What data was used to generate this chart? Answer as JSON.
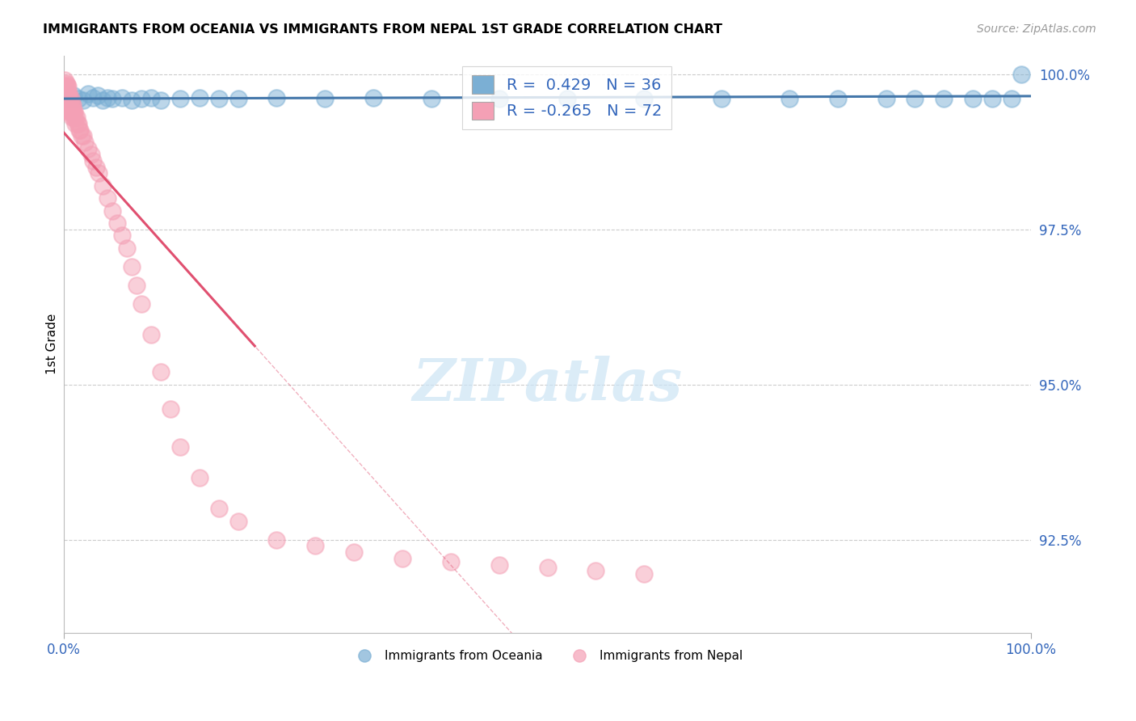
{
  "title": "IMMIGRANTS FROM OCEANIA VS IMMIGRANTS FROM NEPAL 1ST GRADE CORRELATION CHART",
  "source": "Source: ZipAtlas.com",
  "ylabel": "1st Grade",
  "legend_label1": "Immigrants from Oceania",
  "legend_label2": "Immigrants from Nepal",
  "r1": 0.429,
  "n1": 36,
  "r2": -0.265,
  "n2": 72,
  "blue_color": "#7BAFD4",
  "pink_color": "#F4A0B5",
  "blue_line_color": "#4477AA",
  "pink_line_color": "#E05070",
  "oceania_x": [
    0.005,
    0.01,
    0.015,
    0.02,
    0.025,
    0.03,
    0.035,
    0.04,
    0.045,
    0.05,
    0.06,
    0.07,
    0.08,
    0.09,
    0.1,
    0.12,
    0.14,
    0.16,
    0.18,
    0.22,
    0.27,
    0.32,
    0.38,
    0.45,
    0.52,
    0.6,
    0.68,
    0.75,
    0.8,
    0.85,
    0.88,
    0.91,
    0.94,
    0.96,
    0.98,
    0.99
  ],
  "oceania_y": [
    0.996,
    0.9965,
    0.996,
    0.9958,
    0.9968,
    0.9962,
    0.9965,
    0.9958,
    0.9962,
    0.996,
    0.9962,
    0.9958,
    0.996,
    0.9962,
    0.9958,
    0.996,
    0.9962,
    0.996,
    0.996,
    0.9962,
    0.996,
    0.9962,
    0.996,
    0.996,
    0.996,
    0.996,
    0.996,
    0.996,
    0.996,
    0.996,
    0.996,
    0.996,
    0.996,
    0.996,
    0.996,
    1.0
  ],
  "nepal_x": [
    0.001,
    0.001,
    0.001,
    0.002,
    0.002,
    0.002,
    0.002,
    0.003,
    0.003,
    0.003,
    0.003,
    0.004,
    0.004,
    0.004,
    0.005,
    0.005,
    0.005,
    0.005,
    0.006,
    0.006,
    0.006,
    0.007,
    0.007,
    0.007,
    0.008,
    0.008,
    0.008,
    0.009,
    0.009,
    0.01,
    0.01,
    0.011,
    0.012,
    0.012,
    0.013,
    0.014,
    0.015,
    0.016,
    0.017,
    0.018,
    0.02,
    0.022,
    0.025,
    0.028,
    0.03,
    0.033,
    0.036,
    0.04,
    0.045,
    0.05,
    0.055,
    0.06,
    0.065,
    0.07,
    0.075,
    0.08,
    0.09,
    0.1,
    0.11,
    0.12,
    0.14,
    0.16,
    0.18,
    0.22,
    0.26,
    0.3,
    0.35,
    0.4,
    0.45,
    0.5,
    0.55,
    0.6
  ],
  "nepal_y": [
    0.999,
    0.998,
    0.997,
    0.9985,
    0.998,
    0.997,
    0.996,
    0.9982,
    0.997,
    0.996,
    0.995,
    0.998,
    0.997,
    0.996,
    0.997,
    0.996,
    0.995,
    0.994,
    0.996,
    0.995,
    0.994,
    0.996,
    0.995,
    0.994,
    0.995,
    0.994,
    0.993,
    0.995,
    0.994,
    0.994,
    0.993,
    0.994,
    0.993,
    0.992,
    0.993,
    0.992,
    0.992,
    0.991,
    0.991,
    0.99,
    0.99,
    0.989,
    0.988,
    0.987,
    0.986,
    0.985,
    0.984,
    0.982,
    0.98,
    0.978,
    0.976,
    0.974,
    0.972,
    0.969,
    0.966,
    0.963,
    0.958,
    0.952,
    0.946,
    0.94,
    0.935,
    0.93,
    0.928,
    0.925,
    0.924,
    0.923,
    0.922,
    0.9215,
    0.921,
    0.9205,
    0.92,
    0.9195
  ],
  "xlim": [
    0.0,
    1.0
  ],
  "ylim_min": 0.91,
  "ylim_max": 1.003,
  "y_ticks": [
    0.925,
    0.95,
    0.975,
    1.0
  ],
  "y_tick_labels": [
    "92.5%",
    "95.0%",
    "97.5%",
    "100.0%"
  ],
  "x_ticks": [
    0.0,
    1.0
  ],
  "x_tick_labels": [
    "0.0%",
    "100.0%"
  ]
}
